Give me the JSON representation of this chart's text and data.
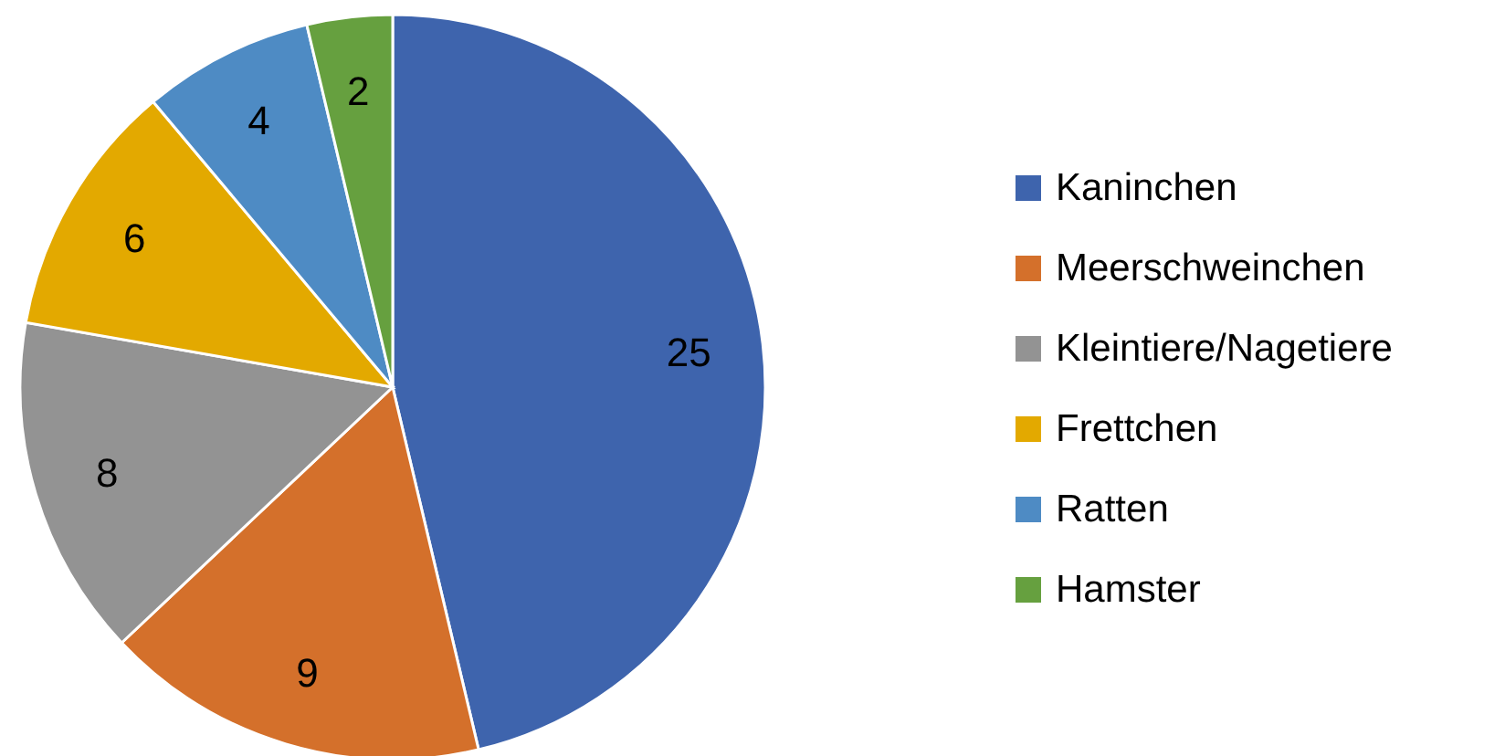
{
  "chart_data": {
    "type": "pie",
    "categories": [
      "Kaninchen",
      "Meerschweinchen",
      "Kleintiere/Nagetiere",
      "Frettchen",
      "Ratten",
      "Hamster"
    ],
    "values": [
      25,
      9,
      8,
      6,
      4,
      2
    ],
    "colors": [
      "#3e64ad",
      "#d4702b",
      "#939393",
      "#e3a900",
      "#4e8bc4",
      "#66a03f"
    ],
    "data_labels": true,
    "legend": "right"
  }
}
